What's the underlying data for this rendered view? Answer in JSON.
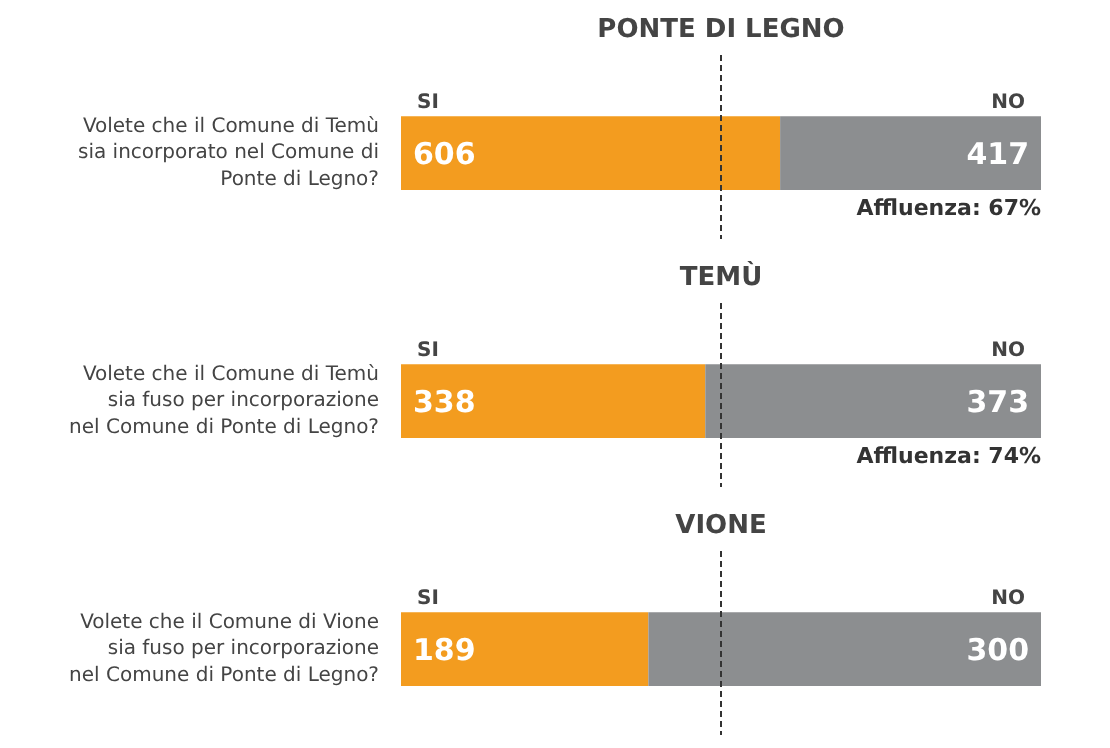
{
  "chart_data": [
    {
      "type": "bar",
      "orientation": "horizontal",
      "stacked": true,
      "title": "PONTE DI LEGNO",
      "categories": [
        "Volete che il Comune di Temù sia incorporato nel Comune di Ponte di Legno?"
      ],
      "series": [
        {
          "name": "SI",
          "color": "#f39c1f",
          "values": [
            606
          ]
        },
        {
          "name": "NO",
          "color": "#8c8e90",
          "values": [
            417
          ]
        }
      ],
      "xlim": [
        0,
        1023
      ],
      "ref_lines": [
        {
          "axis": "x",
          "value": 511.5,
          "line_style": "dashed",
          "color": "#333333"
        }
      ],
      "data_labels": true,
      "tick_labels": "y",
      "grid": false,
      "annotations": [
        "Affluenza: 67%"
      ]
    },
    {
      "type": "bar",
      "orientation": "horizontal",
      "stacked": true,
      "title": "TEMÙ",
      "categories": [
        "Volete che il Comune di Temù sia fuso per incorporazione nel Comune di Ponte di Legno?"
      ],
      "series": [
        {
          "name": "SI",
          "color": "#f39c1f",
          "values": [
            338
          ]
        },
        {
          "name": "NO",
          "color": "#8c8e90",
          "values": [
            373
          ]
        }
      ],
      "xlim": [
        0,
        711
      ],
      "ref_lines": [
        {
          "axis": "x",
          "value": 355.5,
          "line_style": "dashed",
          "color": "#333333"
        }
      ],
      "data_labels": true,
      "tick_labels": "y",
      "grid": false,
      "annotations": [
        "Affluenza: 74%"
      ]
    },
    {
      "type": "bar",
      "orientation": "horizontal",
      "stacked": true,
      "title": "VIONE",
      "categories": [
        "Volete che il Comune di Vione sia fuso per incorporazione nel Comune di Ponte di Legno?"
      ],
      "series": [
        {
          "name": "SI",
          "color": "#f39c1f",
          "values": [
            189
          ]
        },
        {
          "name": "NO",
          "color": "#8c8e90",
          "values": [
            300
          ]
        }
      ],
      "xlim": [
        0,
        489
      ],
      "ref_lines": [
        {
          "axis": "x",
          "value": 244.5,
          "line_style": "dashed",
          "color": "#333333"
        }
      ],
      "data_labels": true,
      "tick_labels": "y",
      "grid": false
    }
  ]
}
